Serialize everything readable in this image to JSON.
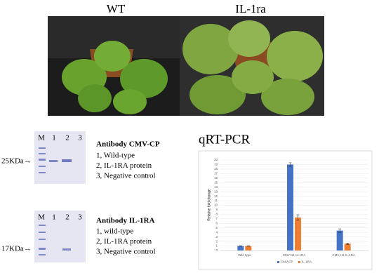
{
  "photos": {
    "labels": [
      "WT",
      "IL-1ra"
    ]
  },
  "blots": [
    {
      "lanes": [
        "M",
        "1",
        "2",
        "3"
      ],
      "marker": "25KDa→",
      "title": "Antibody CMV-CP",
      "items": [
        "1, Wild-type",
        "2, IL-1RA protein",
        "3, Negative control"
      ]
    },
    {
      "lanes": [
        "M",
        "1",
        "2",
        "3"
      ],
      "marker": "17KDa→",
      "title": "Antibody IL-1RA",
      "items": [
        "1, wild-type",
        "2, IL-1RA protein",
        "3, Negative control"
      ]
    }
  ],
  "chart_data": {
    "type": "bar",
    "title": "qRT-PCR",
    "y_label": "Relative fold change",
    "categories": [
      "Wild type",
      "CMV-N1-IL-1RA",
      "CMV-H1-IL-1RA"
    ],
    "series": [
      {
        "name": "CMV-CP",
        "color": "#4472c4",
        "values": [
          1,
          19,
          4.4
        ],
        "errors": [
          0.05,
          0.4,
          0.4
        ]
      },
      {
        "name": "IL-1RA",
        "color": "#ed7d31",
        "values": [
          1,
          7.3,
          1.5
        ],
        "errors": [
          0.05,
          0.6,
          0.15
        ]
      }
    ],
    "ylim": [
      0,
      20
    ],
    "yticks": [
      0,
      1,
      2,
      3,
      4,
      5,
      6,
      7,
      8,
      9,
      10,
      11,
      12,
      13,
      14,
      15,
      16,
      17,
      18,
      19,
      20
    ],
    "grid": true,
    "legend": "bottom"
  }
}
